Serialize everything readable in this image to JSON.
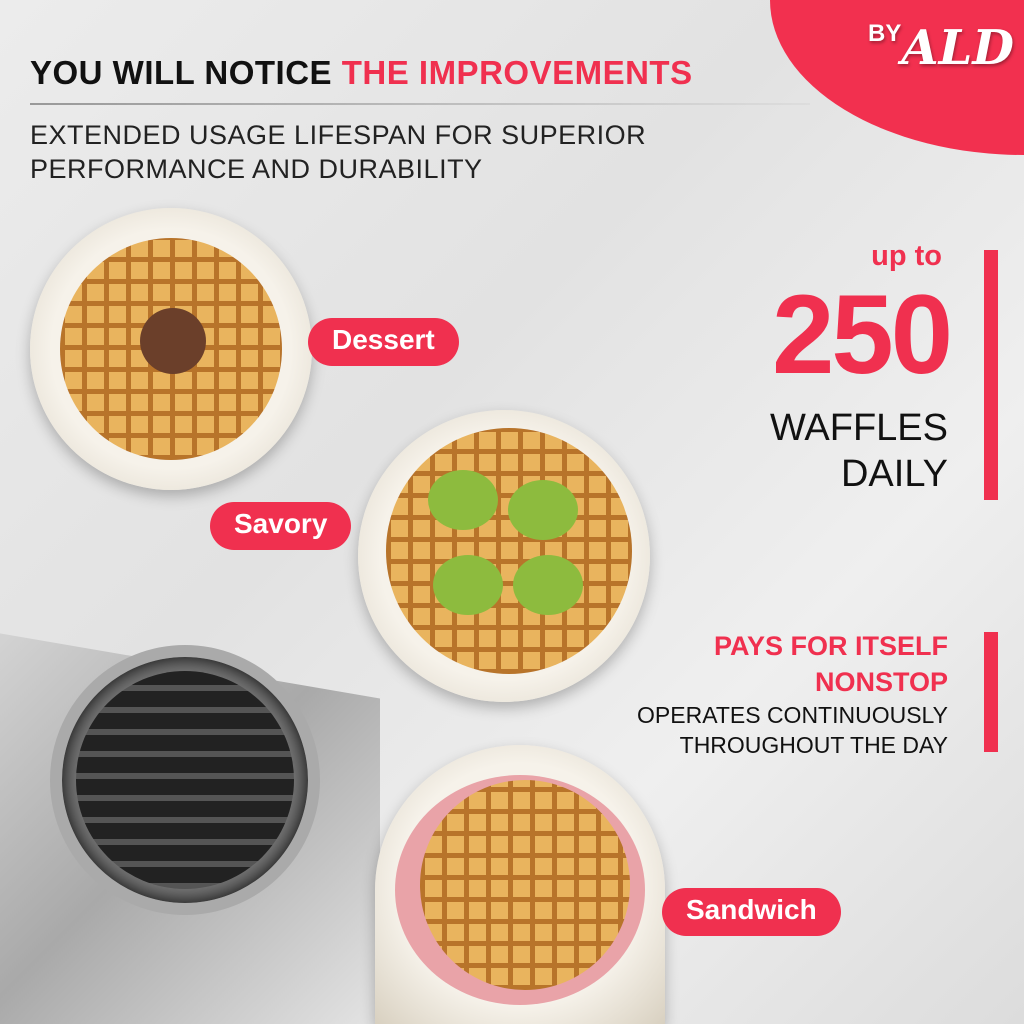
{
  "brand": {
    "by": "BY",
    "name": "ALD"
  },
  "header": {
    "title_black": "YOU WILL NOTICE ",
    "title_red": "THE IMPROVEMENTS",
    "subtitle_line1": "EXTENDED USAGE LIFESPAN FOR SUPERIOR",
    "subtitle_line2": "PERFORMANCE AND DURABILITY"
  },
  "labels": {
    "dessert": "Dessert",
    "savory": "Savory",
    "sandwich": "Sandwich"
  },
  "stat": {
    "up_to": "up to",
    "number": "250",
    "line1": "WAFFLES",
    "line2": "DAILY"
  },
  "feature": {
    "title1": "PAYS FOR ITSELF",
    "title2": "NONSTOP",
    "desc1": "OPERATES CONTINUOUSLY",
    "desc2": "THROUGHOUT THE DAY"
  },
  "colors": {
    "accent": "#f0304f"
  }
}
